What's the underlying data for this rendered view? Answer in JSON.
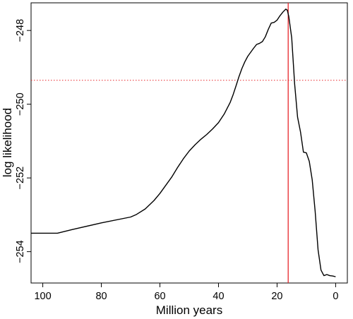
{
  "chart_data": {
    "type": "line",
    "title": "",
    "xlabel": "Million years",
    "ylabel": "log likelihood",
    "xlim": [
      104,
      -4
    ],
    "ylim": [
      -254.85,
      -247.25
    ],
    "x_reversed": true,
    "grid": false,
    "legend": "none",
    "x_ticks": [
      100,
      80,
      60,
      40,
      20,
      0
    ],
    "y_ticks": [
      -248,
      -250,
      -252,
      -254
    ],
    "x_tick_labels": [
      "100",
      "80",
      "60",
      "40",
      "20",
      "0"
    ],
    "y_tick_labels": [
      "−248",
      "−250",
      "−252",
      "−254"
    ],
    "series": [
      {
        "color": "#000000",
        "x": [
          104,
          95,
          90,
          80,
          70,
          68,
          65,
          62,
          60,
          58,
          56,
          54,
          52,
          50,
          48,
          46,
          44,
          42,
          40,
          38,
          36,
          35,
          34,
          33,
          32,
          31,
          30,
          29,
          28,
          27,
          26,
          25,
          24,
          23,
          22,
          21,
          20,
          19,
          18,
          17,
          16.5,
          16,
          15,
          14,
          13,
          12,
          11,
          10,
          9,
          8,
          7,
          6,
          5,
          4,
          3,
          2,
          1,
          0
        ],
        "y": [
          -253.5,
          -253.5,
          -253.4,
          -253.22,
          -253.06,
          -252.99,
          -252.84,
          -252.61,
          -252.42,
          -252.2,
          -251.98,
          -251.72,
          -251.48,
          -251.27,
          -251.1,
          -250.95,
          -250.82,
          -250.67,
          -250.5,
          -250.26,
          -249.95,
          -249.74,
          -249.5,
          -249.25,
          -249.03,
          -248.85,
          -248.7,
          -248.59,
          -248.48,
          -248.38,
          -248.35,
          -248.3,
          -248.17,
          -247.97,
          -247.8,
          -247.78,
          -247.72,
          -247.6,
          -247.5,
          -247.42,
          -247.45,
          -247.62,
          -248.2,
          -249.45,
          -250.35,
          -250.75,
          -251.3,
          -251.32,
          -251.55,
          -252.05,
          -252.9,
          -253.95,
          -254.5,
          -254.65,
          -254.62,
          -254.65,
          -254.66,
          -254.68
        ]
      }
    ],
    "reference_lines": [
      {
        "orientation": "vertical",
        "value": 16.2,
        "color": "#e8262b",
        "style": "solid"
      },
      {
        "orientation": "horizontal",
        "value": -249.35,
        "color": "#e8262b",
        "style": "dotted"
      }
    ]
  }
}
